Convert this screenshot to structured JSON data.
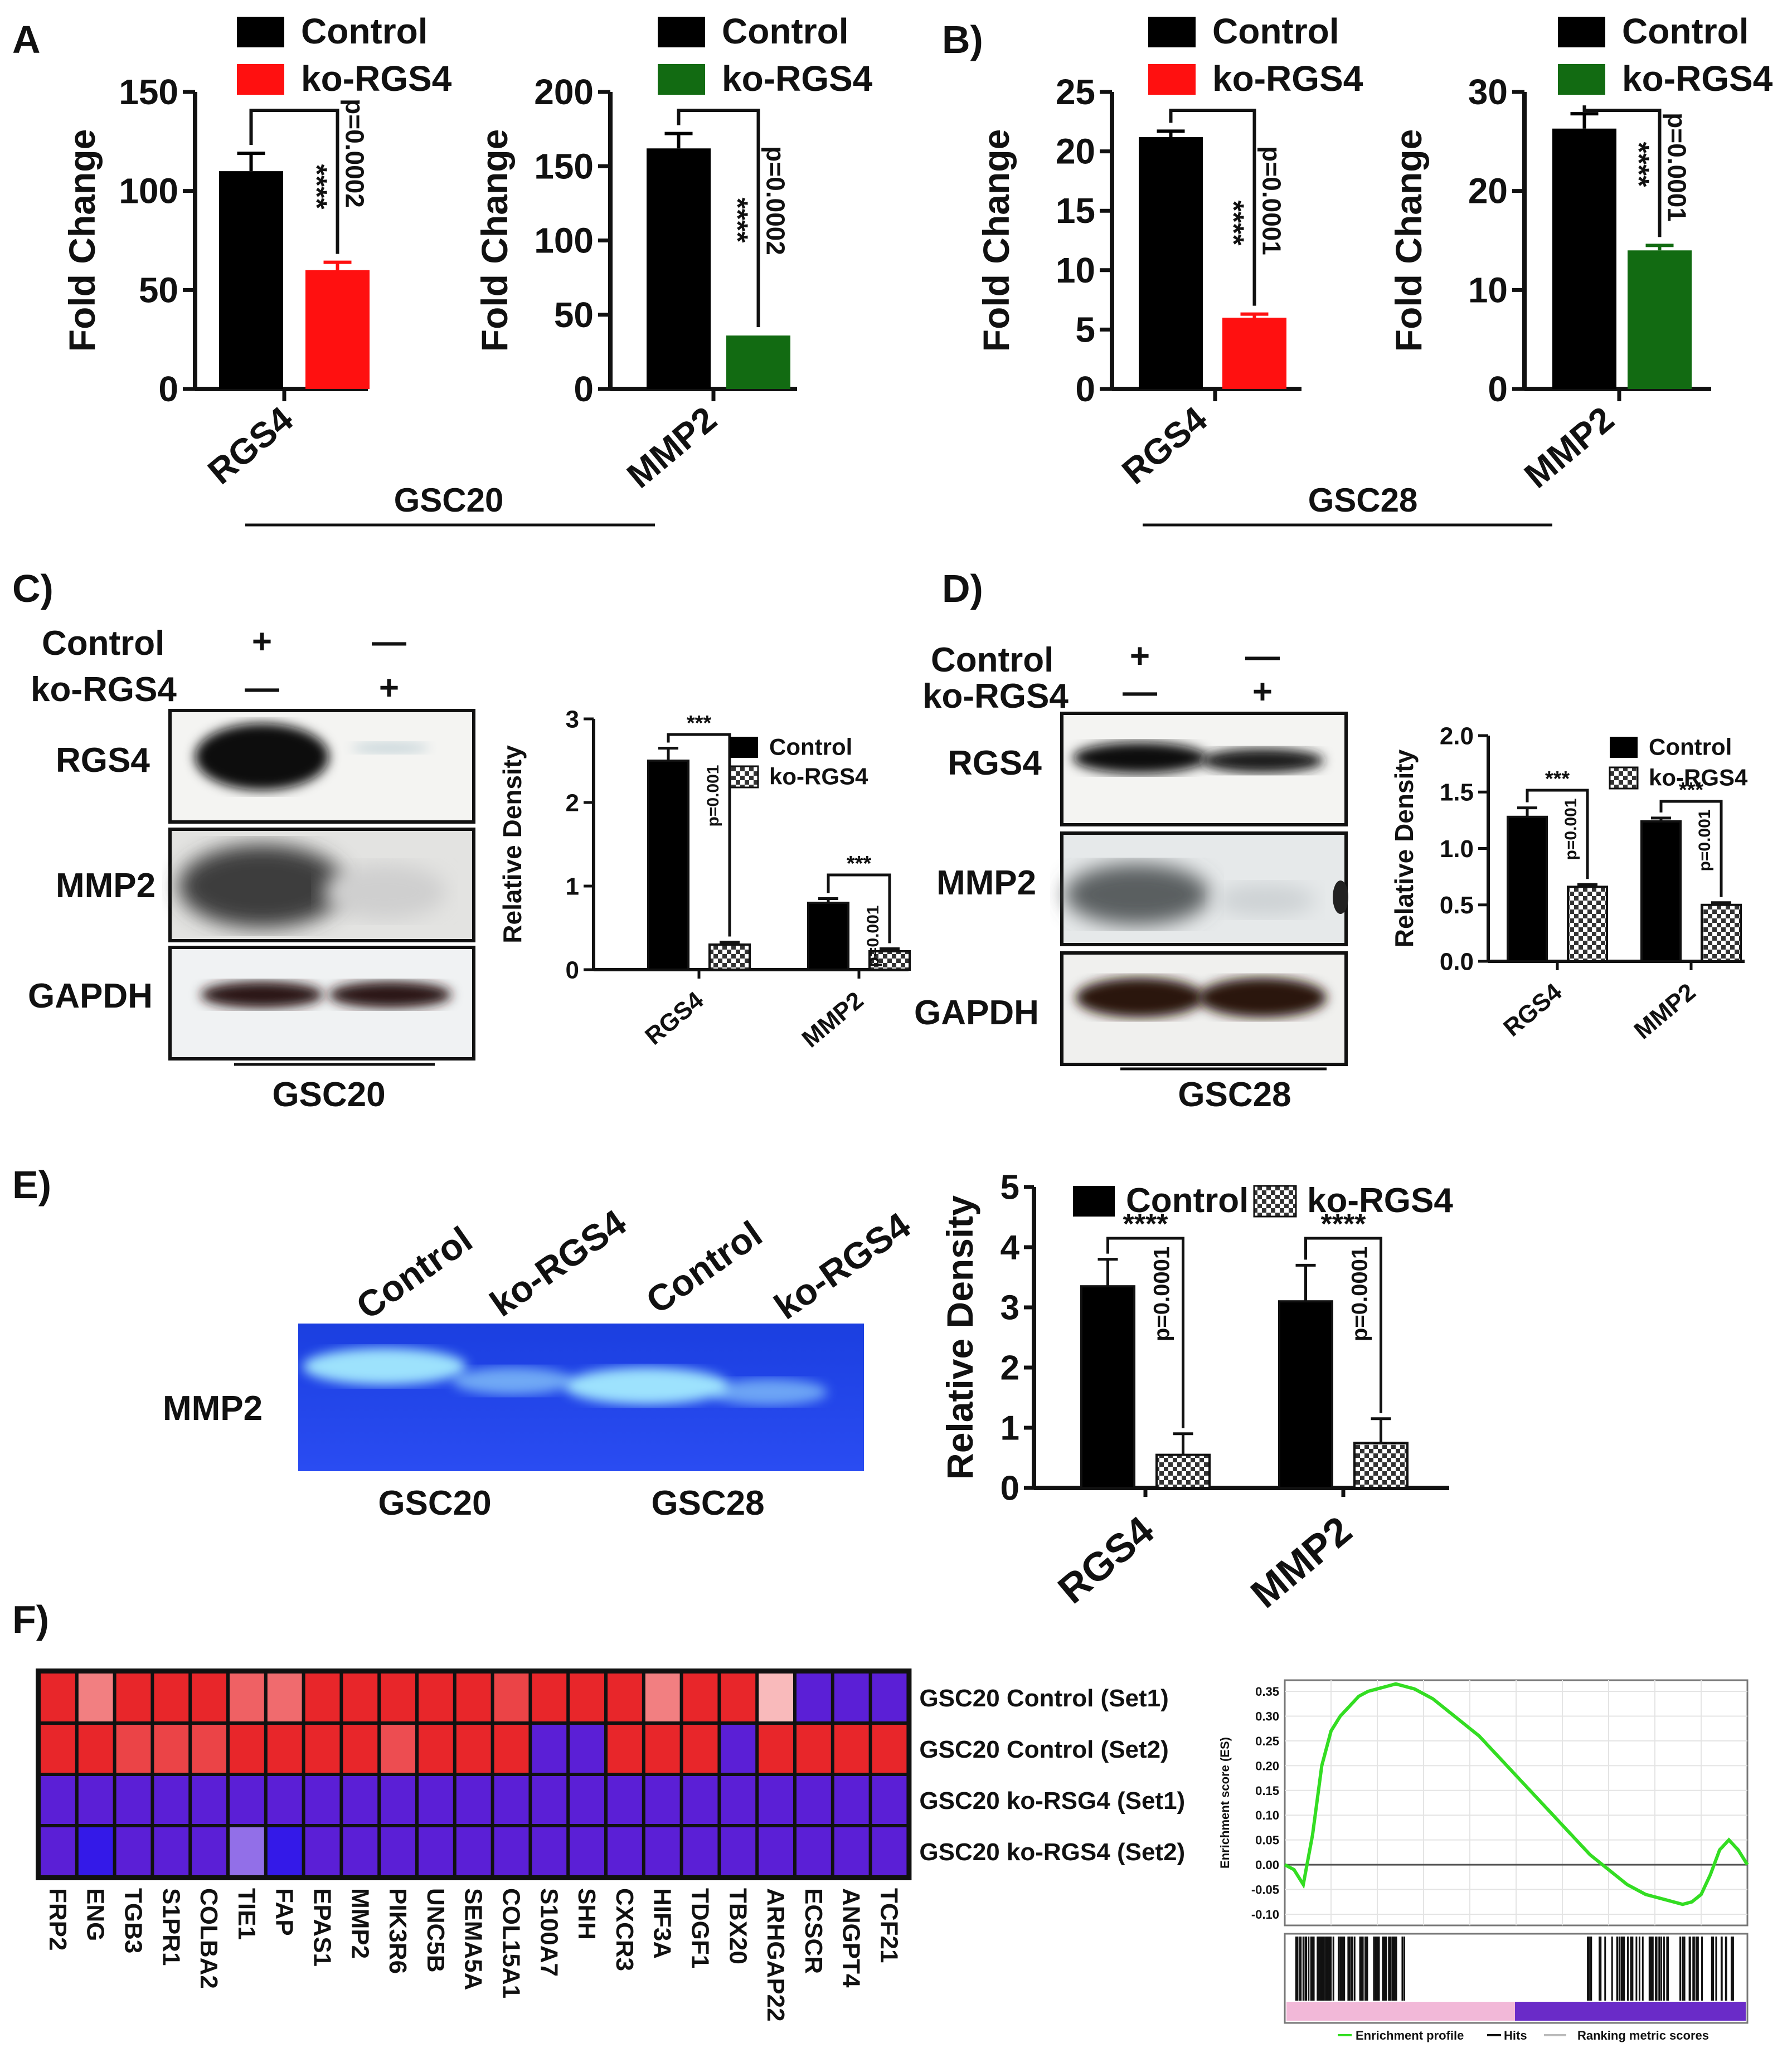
{
  "colors": {
    "control": "#000000",
    "ko_red": "#ff1010",
    "ko_green": "#126b12",
    "heat_high": "#e8262a",
    "heat_low": "#5b1fd6",
    "gsea_curve": "#33dd22"
  },
  "panels": {
    "A": {
      "label": "A"
    },
    "B": {
      "label": "B)"
    },
    "C": {
      "label": "C)"
    },
    "D": {
      "label": "D)"
    },
    "E": {
      "label": "E)"
    },
    "F": {
      "label": "F)"
    }
  },
  "legend": {
    "control": "Control",
    "ko": "ko-RGS4"
  },
  "groups": {
    "gsc20": "GSC20",
    "gsc28": "GSC28"
  },
  "blots": {
    "C": {
      "rows": [
        "Control",
        "ko-RGS4"
      ],
      "signs": [
        [
          "+",
          "—"
        ],
        [
          "—",
          "+"
        ]
      ],
      "bands": [
        "RGS4",
        "MMP2",
        "GAPDH"
      ],
      "group": "GSC20"
    },
    "D": {
      "rows": [
        "Control",
        "ko-RGS4"
      ],
      "signs": [
        [
          "+",
          "—"
        ],
        [
          "—",
          "+"
        ]
      ],
      "bands": [
        "RGS4",
        "MMP2",
        "GAPDH"
      ],
      "group": "GSC28"
    }
  },
  "zymogram": {
    "lanes": [
      "Control",
      "ko-RGS4",
      "Control",
      "ko-RGS4"
    ],
    "band_label": "MMP2",
    "groups": [
      "GSC20",
      "GSC28"
    ],
    "band_intensity": [
      0.95,
      0.4,
      0.95,
      0.35
    ]
  },
  "heatmap": {
    "rows": [
      "GSC20 Control (Set1)",
      "GSC20 Control (Set2)",
      "GSC20 ko-RSG4 (Set1)",
      "GSC20 ko-RGS4 (Set2)"
    ],
    "genes": [
      "FRP2",
      "ENG",
      "TGB3",
      "S1PR1",
      "COLBA2",
      "TIE1",
      "FAP",
      "EPAS1",
      "MMP2",
      "PIK3R6",
      "UNC5B",
      "SEMA5A",
      "COL15A1",
      "S100A7",
      "SHH",
      "CXCR3",
      "HIF3A",
      "TDGF1",
      "TBX20",
      "ARHGAP22",
      "ECSCR",
      "ANGPT4",
      "TCF21"
    ],
    "highlight_gene": "MMP2",
    "values": [
      [
        1.0,
        0.55,
        1.0,
        1.0,
        1.0,
        0.7,
        0.65,
        1.0,
        1.0,
        1.0,
        1.0,
        1.0,
        0.85,
        1.0,
        1.0,
        1.0,
        0.55,
        1.0,
        1.0,
        0.25,
        -1.0,
        -1.0,
        -1.0
      ],
      [
        1.0,
        1.0,
        0.85,
        0.85,
        0.85,
        1.0,
        1.0,
        1.0,
        1.0,
        0.8,
        1.0,
        1.0,
        1.0,
        -1.0,
        -1.0,
        1.0,
        1.0,
        1.0,
        -1.0,
        1.0,
        1.0,
        1.0,
        1.0
      ],
      [
        -1.0,
        -1.0,
        -1.0,
        -1.0,
        -1.0,
        -1.0,
        -1.0,
        -1.0,
        -1.0,
        -1.0,
        -1.0,
        -1.0,
        -1.0,
        -1.0,
        -1.0,
        -1.0,
        -1.0,
        -1.0,
        -1.0,
        -1.0,
        -1.0,
        -1.0,
        -1.0
      ],
      [
        -1.0,
        -1.2,
        -1.0,
        -1.0,
        -1.0,
        -0.5,
        -1.2,
        -1.0,
        -1.0,
        -1.0,
        -1.0,
        -1.0,
        -1.0,
        -1.0,
        -1.0,
        -1.0,
        -1.0,
        -1.0,
        -1.0,
        -1.0,
        -1.0,
        -1.0,
        -1.0
      ]
    ]
  },
  "chart_data": [
    {
      "id": "A1",
      "type": "bar",
      "panel": "A",
      "categories": [
        "Control",
        "ko-RGS4"
      ],
      "values": [
        110,
        60
      ],
      "errors": [
        9,
        4
      ],
      "ylabel": "Fold Change",
      "ylim": [
        0,
        150
      ],
      "yticks": [
        0,
        50,
        100,
        150
      ],
      "xlabel_gene": "RGS4",
      "sig": "****",
      "pvalue": "p=0.0002",
      "legend": [
        "Control",
        "ko-RGS4"
      ],
      "colors": [
        "#000000",
        "#ff1010"
      ]
    },
    {
      "id": "A2",
      "type": "bar",
      "panel": "A",
      "categories": [
        "Control",
        "ko-RGS4"
      ],
      "values": [
        162,
        36
      ],
      "errors": [
        10,
        0
      ],
      "ylabel": "Fold Change",
      "ylim": [
        0,
        200
      ],
      "yticks": [
        0,
        50,
        100,
        150,
        200
      ],
      "xlabel_gene": "MMP2",
      "sig": "****",
      "pvalue": "p=0.0002",
      "legend": [
        "Control",
        "ko-RGS4"
      ],
      "colors": [
        "#000000",
        "#126b12"
      ]
    },
    {
      "id": "B1",
      "type": "bar",
      "panel": "B",
      "categories": [
        "Control",
        "ko-RGS4"
      ],
      "values": [
        21.2,
        6.0
      ],
      "errors": [
        0.5,
        0.3
      ],
      "ylabel": "Fold Change",
      "ylim": [
        0,
        25
      ],
      "yticks": [
        0,
        5,
        10,
        15,
        20,
        25
      ],
      "xlabel_gene": "RGS4",
      "sig": "****",
      "pvalue": "p=0.0001",
      "legend": [
        "Control",
        "ko-RGS4"
      ],
      "colors": [
        "#000000",
        "#ff1010"
      ]
    },
    {
      "id": "B2",
      "type": "bar",
      "panel": "B",
      "categories": [
        "Control",
        "ko-RGS4"
      ],
      "values": [
        26.3,
        14.0
      ],
      "errors": [
        1.5,
        0.5
      ],
      "ylabel": "Fold Change",
      "ylim": [
        0,
        30
      ],
      "yticks": [
        0,
        10,
        20,
        30
      ],
      "xlabel_gene": "MMP2",
      "sig": "****",
      "pvalue": "p=0.0001",
      "legend": [
        "Control",
        "ko-RGS4"
      ],
      "colors": [
        "#000000",
        "#126b12"
      ]
    },
    {
      "id": "C",
      "type": "bar",
      "panel": "C",
      "categories": [
        "RGS4",
        "MMP2"
      ],
      "series": [
        {
          "name": "Control",
          "values": [
            2.5,
            0.8
          ],
          "errors": [
            0.15,
            0.05
          ]
        },
        {
          "name": "ko-RGS4",
          "values": [
            0.3,
            0.22
          ],
          "errors": [
            0.03,
            0.03
          ]
        }
      ],
      "ylabel": "Relative Density",
      "ylim": [
        0,
        3
      ],
      "yticks": [
        0,
        1,
        2,
        3
      ],
      "sig": [
        "***",
        "***"
      ],
      "pvalue": [
        "p=0.001",
        "p=0.001"
      ]
    },
    {
      "id": "D",
      "type": "bar",
      "panel": "D",
      "categories": [
        "RGS4",
        "MMP2"
      ],
      "series": [
        {
          "name": "Control",
          "values": [
            1.28,
            1.24
          ],
          "errors": [
            0.08,
            0.03
          ]
        },
        {
          "name": "ko-RGS4",
          "values": [
            0.66,
            0.5
          ],
          "errors": [
            0.02,
            0.02
          ]
        }
      ],
      "ylabel": "Relative Density",
      "ylim": [
        0,
        2.0
      ],
      "yticks": [
        "0.0",
        "0.5",
        "1.0",
        "1.5",
        "2.0"
      ],
      "sig": [
        "***",
        "***"
      ],
      "pvalue": [
        "p=0.001",
        "p=0.001"
      ]
    },
    {
      "id": "E",
      "type": "bar",
      "panel": "E",
      "categories": [
        "RGS4",
        "MMP2"
      ],
      "series": [
        {
          "name": "Control",
          "values": [
            3.35,
            3.1
          ],
          "errors": [
            0.45,
            0.6
          ]
        },
        {
          "name": "ko-RGS4",
          "values": [
            0.55,
            0.75
          ],
          "errors": [
            0.35,
            0.4
          ]
        }
      ],
      "ylabel": "Relative Density",
      "ylim": [
        0,
        5
      ],
      "yticks": [
        0,
        1,
        2,
        3,
        4,
        5
      ],
      "sig": [
        "****",
        "****"
      ],
      "pvalue": [
        "p=0.0001",
        "p=0.0001"
      ]
    },
    {
      "id": "F_gsea",
      "type": "line",
      "panel": "F",
      "ylabel": "Enrichment score (ES)",
      "ylim": [
        -0.1,
        0.35
      ],
      "yticks": [
        "0.35",
        "0.30",
        "0.25",
        "0.20",
        "0.15",
        "0.10",
        "0.05",
        "0.00",
        "-0.05",
        "-0.10"
      ],
      "x": [
        0,
        2,
        4,
        6,
        8,
        10,
        12,
        14,
        16,
        18,
        20,
        22,
        24,
        26,
        28,
        30,
        32,
        34,
        36,
        38,
        40,
        42,
        44,
        46,
        48,
        50,
        52,
        54,
        56,
        58,
        60,
        62,
        64,
        66,
        68,
        70,
        72,
        74,
        76,
        78,
        80,
        82,
        84,
        86,
        88,
        90,
        92,
        94,
        96,
        98,
        100
      ],
      "y": [
        0.0,
        -0.01,
        -0.04,
        0.06,
        0.2,
        0.27,
        0.3,
        0.32,
        0.34,
        0.35,
        0.355,
        0.36,
        0.365,
        0.36,
        0.355,
        0.345,
        0.335,
        0.32,
        0.305,
        0.29,
        0.275,
        0.26,
        0.24,
        0.22,
        0.2,
        0.18,
        0.16,
        0.14,
        0.12,
        0.1,
        0.08,
        0.06,
        0.04,
        0.02,
        0.005,
        -0.01,
        -0.025,
        -0.04,
        -0.05,
        -0.06,
        -0.065,
        -0.07,
        -0.075,
        -0.08,
        -0.075,
        -0.06,
        -0.02,
        0.03,
        0.05,
        0.03,
        0.0
      ],
      "legend": [
        "Enrichment profile",
        "Hits",
        "Ranking metric scores"
      ]
    }
  ]
}
